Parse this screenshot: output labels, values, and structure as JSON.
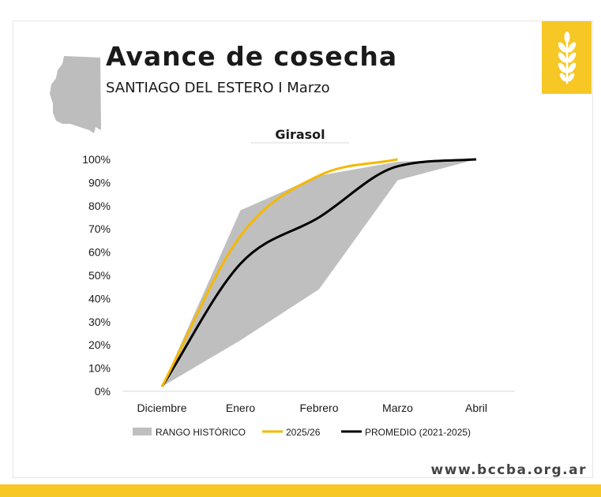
{
  "header": {
    "title": "Avance de cosecha",
    "subtitle": "SANTIAGO DEL ESTERO I Marzo"
  },
  "footer": {
    "url": "www.bccba.org.ar"
  },
  "icons": {
    "region": "province-map-icon",
    "brand": "wheat-icon"
  },
  "colors": {
    "accent": "#f7c726",
    "range": "#bfbfbf",
    "current": "#f5b800",
    "average": "#000000"
  },
  "chart_data": {
    "type": "line",
    "title": "Girasol",
    "categories": [
      "Diciembre",
      "Enero",
      "Febrero",
      "Marzo",
      "Abril"
    ],
    "y_ticks": [
      "0%",
      "10%",
      "20%",
      "30%",
      "40%",
      "50%",
      "60%",
      "70%",
      "80%",
      "90%",
      "100%"
    ],
    "ylim": [
      0,
      100
    ],
    "legend": "bottom",
    "range": {
      "name": "RANGO HISTÓRICO",
      "upper": [
        2,
        78,
        93,
        99,
        100
      ],
      "lower": [
        2,
        22,
        44,
        91,
        100
      ]
    },
    "series": [
      {
        "name": "2025/26",
        "values": [
          2,
          67,
          93,
          100,
          null
        ],
        "color": "#f5b800"
      },
      {
        "name": "PROMEDIO (2021-2025)",
        "values": [
          2,
          55,
          75,
          97,
          100
        ],
        "color": "#000000"
      }
    ]
  }
}
